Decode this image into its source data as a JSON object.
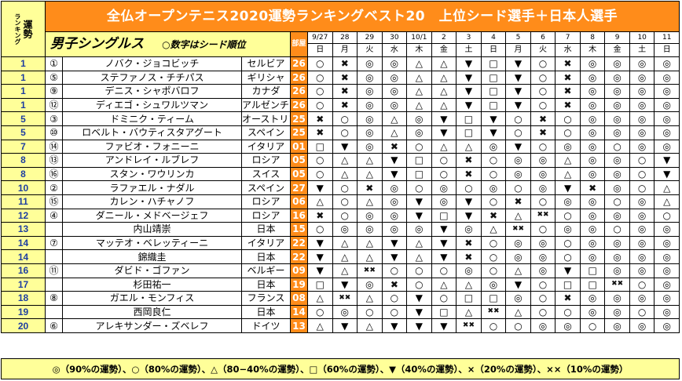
{
  "sidebar": {
    "small_label": "ランキング",
    "big_label": "運勢"
  },
  "header": {
    "title": "全仏オープンテニス2020運勢ランキングベスト20　上位シード選手＋日本人選手"
  },
  "section": {
    "title": "男子シングルス",
    "note": "○数字はシード順位"
  },
  "table_header": {
    "age_label": "部屋",
    "dates": [
      "9/27",
      "28",
      "29",
      "30",
      "10/1",
      "2",
      "3",
      "4",
      "5",
      "6",
      "7",
      "8",
      "9",
      "10",
      "11"
    ],
    "weekdays": [
      "日",
      "月",
      "火",
      "水",
      "木",
      "金",
      "土",
      "日",
      "月",
      "火",
      "水",
      "木",
      "金",
      "土",
      "日"
    ]
  },
  "players": [
    {
      "rank": "1",
      "seed": "①",
      "name": "ノバク・ジョコビッチ",
      "country": "セルビア",
      "age": "26",
      "marks": [
        "○",
        "✖",
        "◎",
        "◎",
        "△",
        "△",
        "▼",
        "□",
        "▼",
        "○",
        "✖",
        "◎",
        "◎",
        "◎",
        "◎"
      ]
    },
    {
      "rank": "1",
      "seed": "⑤",
      "name": "ステファノス・チチパス",
      "country": "ギリシャ",
      "age": "26",
      "marks": [
        "○",
        "✖",
        "◎",
        "◎",
        "△",
        "△",
        "▼",
        "□",
        "▼",
        "○",
        "✖",
        "◎",
        "◎",
        "◎",
        "◎"
      ]
    },
    {
      "rank": "1",
      "seed": "⑨",
      "name": "デニス・シャポバロフ",
      "country": "カナダ",
      "age": "26",
      "marks": [
        "○",
        "✖",
        "◎",
        "◎",
        "△",
        "△",
        "▼",
        "□",
        "▼",
        "○",
        "✖",
        "◎",
        "◎",
        "◎",
        "◎"
      ]
    },
    {
      "rank": "1",
      "seed": "⑫",
      "name": "ディエゴ・シュワルツマン",
      "country": "アルゼンチン",
      "age": "26",
      "marks": [
        "○",
        "✖",
        "◎",
        "◎",
        "△",
        "△",
        "▼",
        "□",
        "▼",
        "○",
        "✖",
        "◎",
        "◎",
        "◎",
        "◎"
      ]
    },
    {
      "rank": "5",
      "seed": "③",
      "name": "ドミニク・ティーム",
      "country": "オーストリア",
      "age": "25",
      "marks": [
        "✖",
        "○",
        "◎",
        "△",
        "◎",
        "▼",
        "□",
        "▼",
        "○",
        "✖",
        "○",
        "◎",
        "◎",
        "◎",
        "◎"
      ]
    },
    {
      "rank": "5",
      "seed": "⑩",
      "name": "ロベルト・バウティスタアグート",
      "country": "スペイン",
      "age": "25",
      "marks": [
        "✖",
        "○",
        "◎",
        "△",
        "◎",
        "▼",
        "□",
        "▼",
        "○",
        "✖",
        "○",
        "◎",
        "◎",
        "◎",
        "◎"
      ]
    },
    {
      "rank": "7",
      "seed": "⑭",
      "name": "ファビオ・フォニーニ",
      "country": "イタリア",
      "age": "01",
      "marks": [
        "□",
        "▼",
        "◎",
        "✖",
        "○",
        "△",
        "△",
        "◎",
        "▼",
        "○",
        "◎",
        "◎",
        "○",
        "◎",
        "◎"
      ]
    },
    {
      "rank": "8",
      "seed": "⑬",
      "name": "アンドレイ・ルブレフ",
      "country": "ロシア",
      "age": "05",
      "marks": [
        "○",
        "△",
        "△",
        "▼",
        "□",
        "○",
        "✖",
        "○",
        "◎",
        "◎",
        "△",
        "◎",
        "◎",
        "○",
        "▼"
      ]
    },
    {
      "rank": "8",
      "seed": "⑯",
      "name": "スタン・ワウリンカ",
      "country": "スイス",
      "age": "05",
      "marks": [
        "○",
        "△",
        "△",
        "▼",
        "□",
        "○",
        "✖",
        "○",
        "◎",
        "◎",
        "△",
        "◎",
        "◎",
        "○",
        "▼"
      ]
    },
    {
      "rank": "10",
      "seed": "②",
      "name": "ラファエル・ナダル",
      "country": "スペイン",
      "age": "27",
      "marks": [
        "▼",
        "○",
        "✖",
        "◎",
        "○",
        "◎",
        "○",
        "◎",
        "○",
        "◎",
        "▼",
        "✖",
        "◎",
        "○",
        "△"
      ]
    },
    {
      "rank": "11",
      "seed": "⑮",
      "name": "カレン・ハチャノフ",
      "country": "ロシア",
      "age": "06",
      "marks": [
        "△",
        "○",
        "△",
        "◎",
        "▼",
        "◎",
        "▼",
        "○",
        "✖",
        "○",
        "◎",
        "◎",
        "○",
        "◎",
        "△"
      ]
    },
    {
      "rank": "12",
      "seed": "④",
      "name": "ダニール・メドベージェフ",
      "country": "ロシア",
      "age": "16",
      "marks": [
        "✖",
        "○",
        "◎",
        "◎",
        "▼",
        "□",
        "▼",
        "✖",
        "△",
        "✖✖",
        "○",
        "◎",
        "◎",
        "◎",
        "○"
      ]
    },
    {
      "rank": "13",
      "seed": "",
      "name": "内山靖崇",
      "country": "日本",
      "age": "15",
      "marks": [
        "○",
        "◎",
        "◎",
        "◎",
        "◎",
        "▼",
        "◎",
        "△",
        "✖✖",
        "○",
        "◎",
        "◎",
        "○",
        "◎",
        "◎"
      ]
    },
    {
      "rank": "14",
      "seed": "⑦",
      "name": "マッテオ・ベレッティーニ",
      "country": "イタリア",
      "age": "22",
      "marks": [
        "▼",
        "△",
        "△",
        "▼",
        "△",
        "▼",
        "✖",
        "○",
        "◎",
        "◎",
        "○",
        "◎",
        "◎",
        "◎",
        "◎"
      ]
    },
    {
      "rank": "14",
      "seed": "",
      "name": "錦織圭",
      "country": "日本",
      "age": "22",
      "marks": [
        "▼",
        "△",
        "△",
        "▼",
        "△",
        "▼",
        "✖",
        "○",
        "◎",
        "◎",
        "○",
        "◎",
        "◎",
        "◎",
        "◎"
      ]
    },
    {
      "rank": "16",
      "seed": "⑪",
      "name": "ダビド・ゴファン",
      "country": "ベルギー",
      "age": "09",
      "marks": [
        "▼",
        "△",
        "✖✖",
        "○",
        "○",
        "○",
        "◎",
        "○",
        "△",
        "◎",
        "▼",
        "□",
        "◎",
        "◎",
        "◎"
      ]
    },
    {
      "rank": "17",
      "seed": "",
      "name": "杉田祐一",
      "country": "日本",
      "age": "19",
      "marks": [
        "□",
        "▼",
        "◎",
        "✖",
        "○",
        "△",
        "△",
        "◎",
        "▼",
        "○",
        "□",
        "□",
        "✖✖",
        "○",
        "◎"
      ]
    },
    {
      "rank": "18",
      "seed": "⑧",
      "name": "ガエル・モンフィス",
      "country": "フランス",
      "age": "08",
      "marks": [
        "△",
        "✖✖",
        "△",
        "○",
        "▼",
        "○",
        "□",
        "□",
        "◎",
        "○",
        "✖",
        "◎",
        "◎",
        "◎",
        "◎"
      ]
    },
    {
      "rank": "19",
      "seed": "",
      "name": "西岡良仁",
      "country": "日本",
      "age": "14",
      "marks": [
        "○",
        "◎",
        "○",
        "○",
        "▼",
        "□",
        "△",
        "✖✖",
        "△",
        "○",
        "○",
        "◎",
        "◎",
        "○",
        "◎"
      ]
    },
    {
      "rank": "20",
      "seed": "⑥",
      "name": "アレキサンダー・ズベレフ",
      "country": "ドイツ",
      "age": "13",
      "marks": [
        "△",
        "▼",
        "△",
        "▼",
        "▼",
        "▼",
        "✖✖",
        "○",
        "○",
        "◎",
        "◎",
        "○",
        "◎",
        "◎",
        "◎"
      ]
    }
  ],
  "legend": {
    "text": "◎（90%の運勢）、○（80%の運勢）、△（80−40%の運勢）、□（60%の運勢）、▼（40%の運勢）、×（20%の運勢）、××（10%の運勢）"
  }
}
